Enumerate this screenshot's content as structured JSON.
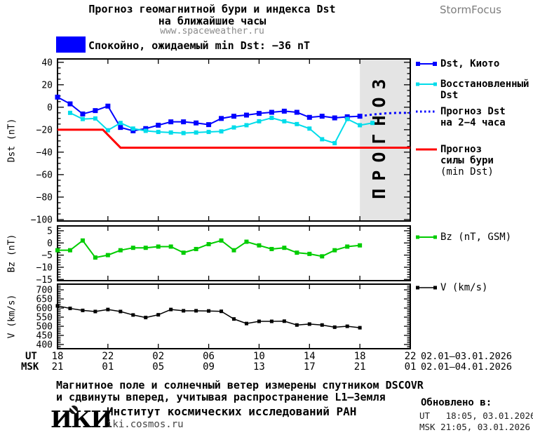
{
  "header": {
    "title_line1": "Прогноз геомагнитной бури и индекса Dst",
    "title_line2": "на ближайшие часы",
    "site": "www.spaceweather.ru",
    "brand": "StormFocus"
  },
  "status": {
    "label": "Спокойно, ожидаемый min Dst: −36 nT",
    "color": "#0000ff",
    "expected_min_dst_nt": -36
  },
  "legend": {
    "dst_kyoto": {
      "line1": "Dst, Киото",
      "color": "#0000ff"
    },
    "restored": {
      "line1": "Восстановленный",
      "line2": "Dst",
      "color": "#00dcea"
    },
    "forecast": {
      "line1": "Прогноз Dst",
      "line2": "на 2−4 часа",
      "color": "#0000ff"
    },
    "storm": {
      "line1": "Прогноз",
      "line2": "силы бури",
      "line3": "(min Dst)",
      "color": "#ff0000"
    },
    "bz": {
      "line1": "Bz (nT, GSM)",
      "color": "#00cc00"
    },
    "v": {
      "line1": "V (km/s)",
      "color": "#000000"
    }
  },
  "xaxis": {
    "ut_label": "UT",
    "msk_label": "MSK",
    "ut_ticks": [
      "18",
      "22",
      "02",
      "06",
      "10",
      "14",
      "18",
      "22"
    ],
    "msk_ticks": [
      "21",
      "01",
      "05",
      "09",
      "13",
      "17",
      "21",
      "01"
    ],
    "ut_date_range": "02.01—03.01.2026",
    "msk_date_range": "02.01—04.01.2026"
  },
  "footer": {
    "note_line1": "Магнитное поле и солнечный ветер измерены спутником DSCOVR",
    "note_line2": "и сдвинуты вперед, учитывая распространение L1—Земля",
    "logo_text": "ИКИ",
    "institute": "Институт космических исследований РАН",
    "site": "iki.cosmos.ru"
  },
  "updated": {
    "heading": "Обновлено в:",
    "ut": "UT   18:05, 03.01.2026",
    "msk": "MSK 21:05, 03.01.2026"
  },
  "chart_data": [
    {
      "id": "dst",
      "type": "line",
      "title": "Прогноз геомагнитной бури и индекса Dst на ближайшие часы",
      "xlabel": "UT/MSK time",
      "ylabel": "Dst (nT)",
      "ylim": [
        -100,
        40
      ],
      "yticks": [
        40,
        20,
        0,
        -20,
        -40,
        -60,
        -80,
        -100
      ],
      "xticks_hours": [
        0,
        4,
        8,
        12,
        16,
        20,
        24,
        28
      ],
      "hours_span": 28,
      "grid": false,
      "legend_position": "right",
      "forecast_region": {
        "start_hour": 24,
        "end_hour": 28,
        "label": "ПРОГНОЗ"
      },
      "series": [
        {
          "name": "Dst, Киото",
          "color": "#0000ff",
          "width": 2,
          "marker": "square",
          "marker_size": 7,
          "x": [
            0,
            1,
            2,
            3,
            4,
            5,
            6,
            7,
            8,
            9,
            10,
            11,
            12,
            13,
            14,
            15,
            16,
            17,
            18,
            19,
            20,
            21,
            22,
            23,
            24
          ],
          "y": [
            9,
            3,
            -6,
            -3,
            1,
            -18,
            -21,
            -19,
            -16,
            -13,
            -13,
            -14,
            -15.5,
            -10,
            -8,
            -7,
            -5.5,
            -4.5,
            -3.5,
            -4.5,
            -9,
            -8,
            -9.5,
            -8.5,
            -8
          ]
        },
        {
          "name": "Восстановленный Dst",
          "color": "#00dcea",
          "width": 2,
          "marker": "square",
          "marker_size": 6,
          "x": [
            1,
            2,
            3,
            4,
            5,
            6,
            7,
            8,
            9,
            10,
            11,
            12,
            13,
            14,
            15,
            16,
            17,
            18,
            19,
            20,
            21,
            22,
            23,
            24,
            25
          ],
          "y": [
            -5,
            -10.5,
            -10,
            -20.5,
            -14,
            -19,
            -21,
            -22,
            -22.5,
            -23,
            -22.5,
            -22,
            -21.5,
            -18,
            -16,
            -12.5,
            -9.5,
            -12.5,
            -15,
            -19,
            -28.5,
            -32,
            -10.5,
            -16,
            -14
          ]
        },
        {
          "name": "Прогноз Dst на 2−4 часа",
          "color": "#0000ff",
          "width": 3,
          "style": "dotted",
          "marker": "none",
          "marker_size": 0,
          "x": [
            24,
            25,
            26,
            27,
            28
          ],
          "y": [
            -8,
            -6.5,
            -5.5,
            -5,
            -5
          ]
        },
        {
          "name": "Прогноз силы бури (min Dst)",
          "color": "#ff0000",
          "width": 3,
          "marker": "none",
          "marker_size": 0,
          "x": [
            0,
            3.6,
            5,
            28
          ],
          "y": [
            -20,
            -20,
            -36,
            -36
          ]
        }
      ]
    },
    {
      "id": "bz",
      "type": "line",
      "title": "",
      "xlabel": "UT/MSK time",
      "ylabel": "Bz (nT)",
      "ylim": [
        -15,
        5
      ],
      "yticks": [
        5,
        0,
        -5,
        -10,
        -15
      ],
      "xticks_hours": [
        0,
        4,
        8,
        12,
        16,
        20,
        24,
        28
      ],
      "hours_span": 28,
      "grid": false,
      "series": [
        {
          "name": "Bz (nT, GSM)",
          "color": "#00cc00",
          "width": 2,
          "marker": "square",
          "marker_size": 6,
          "x": [
            0,
            1,
            2,
            3,
            4,
            5,
            6,
            7,
            8,
            9,
            10,
            11,
            12,
            13,
            14,
            15,
            16,
            17,
            18,
            19,
            20,
            21,
            22,
            23,
            24
          ],
          "y": [
            -3,
            -3,
            1,
            -6,
            -5,
            -3,
            -2,
            -2,
            -1.5,
            -1.5,
            -4,
            -2.5,
            -0.5,
            1,
            -3,
            0.5,
            -1,
            -2.5,
            -2,
            -4,
            -4.5,
            -5.5,
            -3,
            -1.5,
            -1
          ]
        }
      ]
    },
    {
      "id": "v",
      "type": "line",
      "title": "",
      "xlabel": "UT/MSK time",
      "ylabel": "V (km/s)",
      "ylim": [
        400,
        700
      ],
      "yticks": [
        700,
        650,
        600,
        550,
        500,
        450,
        400
      ],
      "xticks_hours": [
        0,
        4,
        8,
        12,
        16,
        20,
        24,
        28
      ],
      "hours_span": 28,
      "grid": false,
      "series": [
        {
          "name": "V (km/s)",
          "color": "#000000",
          "width": 1.5,
          "marker": "square",
          "marker_size": 5,
          "x": [
            0,
            1,
            2,
            3,
            4,
            5,
            6,
            7,
            8,
            9,
            10,
            11,
            12,
            13,
            14,
            15,
            16,
            17,
            18,
            19,
            20,
            21,
            22,
            23,
            24
          ],
          "y": [
            612,
            598,
            587,
            581,
            592,
            581,
            562,
            548,
            563,
            592,
            585,
            585,
            584,
            582,
            540,
            515,
            527,
            527,
            528,
            507,
            512,
            507,
            495,
            500,
            492
          ]
        }
      ]
    }
  ]
}
